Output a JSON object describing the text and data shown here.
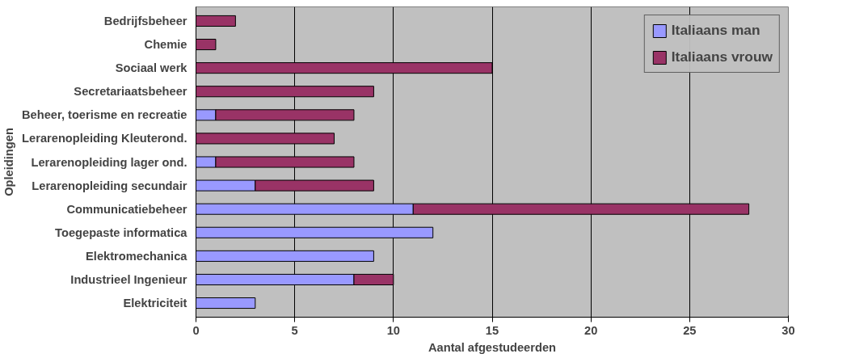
{
  "chart_data": {
    "type": "bar",
    "orientation": "horizontal",
    "stacked": true,
    "xlabel": "Aantal afgestudeerden",
    "ylabel": "Opleidingen",
    "categories": [
      "Bedrijfsbeheer",
      "Chemie",
      "Sociaal werk",
      "Secretariaatsbeheer",
      "Beheer, toerisme en recreatie",
      "Lerarenopleiding Kleuterond.",
      "Lerarenopleiding lager ond.",
      "Lerarenopleiding secundair",
      "Communicatiebeheer",
      "Toegepaste informatica",
      "Elektromechanica",
      "Industrieel Ingenieur",
      "Elektriciteit"
    ],
    "series": [
      {
        "name": "Italiaans man",
        "color": "#9999ff",
        "values": [
          null,
          null,
          null,
          null,
          1,
          null,
          1,
          3,
          11,
          12,
          9,
          8,
          3
        ]
      },
      {
        "name": "Italiaans vrouw",
        "color": "#993366",
        "values": [
          2,
          1,
          15,
          9,
          7,
          7,
          7,
          6,
          17,
          null,
          null,
          2,
          null
        ]
      }
    ],
    "xlim": [
      0,
      30
    ],
    "xticks": [
      0,
      5,
      10,
      15,
      20,
      25,
      30
    ],
    "grid": "x",
    "legend": "top right"
  }
}
